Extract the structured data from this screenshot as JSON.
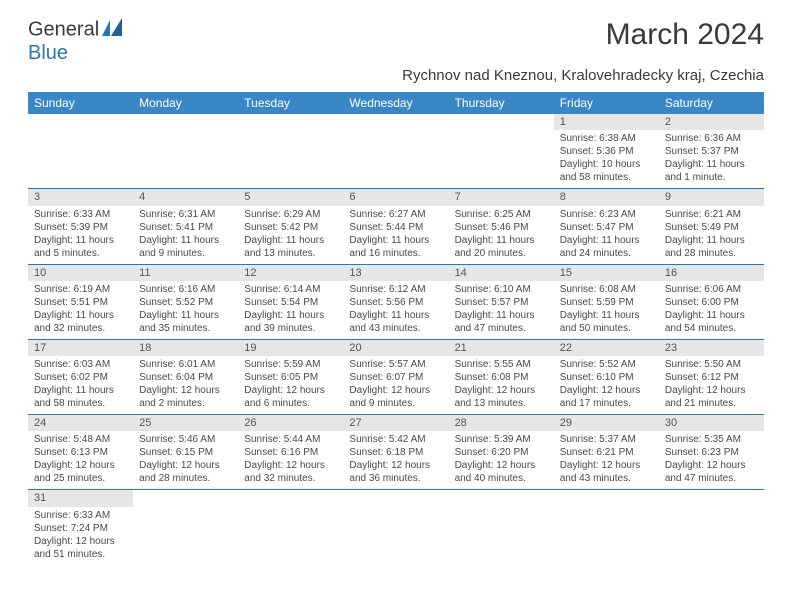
{
  "logo": {
    "text1": "General",
    "text2": "Blue"
  },
  "title": "March 2024",
  "subtitle": "Rychnov nad Kneznou, Kralovehradecky kraj, Czechia",
  "colors": {
    "header_bg": "#3a87c8",
    "header_text": "#ffffff",
    "daynum_bg": "#e6e6e6",
    "border": "#2a77b8",
    "logo_blue": "#2a77b8",
    "text": "#3a3a3a"
  },
  "day_headers": [
    "Sunday",
    "Monday",
    "Tuesday",
    "Wednesday",
    "Thursday",
    "Friday",
    "Saturday"
  ],
  "weeks": [
    [
      null,
      null,
      null,
      null,
      null,
      {
        "n": "1",
        "sunrise": "6:38 AM",
        "sunset": "5:36 PM",
        "daylight": "10 hours and 58 minutes."
      },
      {
        "n": "2",
        "sunrise": "6:36 AM",
        "sunset": "5:37 PM",
        "daylight": "11 hours and 1 minute."
      }
    ],
    [
      {
        "n": "3",
        "sunrise": "6:33 AM",
        "sunset": "5:39 PM",
        "daylight": "11 hours and 5 minutes."
      },
      {
        "n": "4",
        "sunrise": "6:31 AM",
        "sunset": "5:41 PM",
        "daylight": "11 hours and 9 minutes."
      },
      {
        "n": "5",
        "sunrise": "6:29 AM",
        "sunset": "5:42 PM",
        "daylight": "11 hours and 13 minutes."
      },
      {
        "n": "6",
        "sunrise": "6:27 AM",
        "sunset": "5:44 PM",
        "daylight": "11 hours and 16 minutes."
      },
      {
        "n": "7",
        "sunrise": "6:25 AM",
        "sunset": "5:46 PM",
        "daylight": "11 hours and 20 minutes."
      },
      {
        "n": "8",
        "sunrise": "6:23 AM",
        "sunset": "5:47 PM",
        "daylight": "11 hours and 24 minutes."
      },
      {
        "n": "9",
        "sunrise": "6:21 AM",
        "sunset": "5:49 PM",
        "daylight": "11 hours and 28 minutes."
      }
    ],
    [
      {
        "n": "10",
        "sunrise": "6:19 AM",
        "sunset": "5:51 PM",
        "daylight": "11 hours and 32 minutes."
      },
      {
        "n": "11",
        "sunrise": "6:16 AM",
        "sunset": "5:52 PM",
        "daylight": "11 hours and 35 minutes."
      },
      {
        "n": "12",
        "sunrise": "6:14 AM",
        "sunset": "5:54 PM",
        "daylight": "11 hours and 39 minutes."
      },
      {
        "n": "13",
        "sunrise": "6:12 AM",
        "sunset": "5:56 PM",
        "daylight": "11 hours and 43 minutes."
      },
      {
        "n": "14",
        "sunrise": "6:10 AM",
        "sunset": "5:57 PM",
        "daylight": "11 hours and 47 minutes."
      },
      {
        "n": "15",
        "sunrise": "6:08 AM",
        "sunset": "5:59 PM",
        "daylight": "11 hours and 50 minutes."
      },
      {
        "n": "16",
        "sunrise": "6:06 AM",
        "sunset": "6:00 PM",
        "daylight": "11 hours and 54 minutes."
      }
    ],
    [
      {
        "n": "17",
        "sunrise": "6:03 AM",
        "sunset": "6:02 PM",
        "daylight": "11 hours and 58 minutes."
      },
      {
        "n": "18",
        "sunrise": "6:01 AM",
        "sunset": "6:04 PM",
        "daylight": "12 hours and 2 minutes."
      },
      {
        "n": "19",
        "sunrise": "5:59 AM",
        "sunset": "6:05 PM",
        "daylight": "12 hours and 6 minutes."
      },
      {
        "n": "20",
        "sunrise": "5:57 AM",
        "sunset": "6:07 PM",
        "daylight": "12 hours and 9 minutes."
      },
      {
        "n": "21",
        "sunrise": "5:55 AM",
        "sunset": "6:08 PM",
        "daylight": "12 hours and 13 minutes."
      },
      {
        "n": "22",
        "sunrise": "5:52 AM",
        "sunset": "6:10 PM",
        "daylight": "12 hours and 17 minutes."
      },
      {
        "n": "23",
        "sunrise": "5:50 AM",
        "sunset": "6:12 PM",
        "daylight": "12 hours and 21 minutes."
      }
    ],
    [
      {
        "n": "24",
        "sunrise": "5:48 AM",
        "sunset": "6:13 PM",
        "daylight": "12 hours and 25 minutes."
      },
      {
        "n": "25",
        "sunrise": "5:46 AM",
        "sunset": "6:15 PM",
        "daylight": "12 hours and 28 minutes."
      },
      {
        "n": "26",
        "sunrise": "5:44 AM",
        "sunset": "6:16 PM",
        "daylight": "12 hours and 32 minutes."
      },
      {
        "n": "27",
        "sunrise": "5:42 AM",
        "sunset": "6:18 PM",
        "daylight": "12 hours and 36 minutes."
      },
      {
        "n": "28",
        "sunrise": "5:39 AM",
        "sunset": "6:20 PM",
        "daylight": "12 hours and 40 minutes."
      },
      {
        "n": "29",
        "sunrise": "5:37 AM",
        "sunset": "6:21 PM",
        "daylight": "12 hours and 43 minutes."
      },
      {
        "n": "30",
        "sunrise": "5:35 AM",
        "sunset": "6:23 PM",
        "daylight": "12 hours and 47 minutes."
      }
    ],
    [
      {
        "n": "31",
        "sunrise": "6:33 AM",
        "sunset": "7:24 PM",
        "daylight": "12 hours and 51 minutes."
      },
      null,
      null,
      null,
      null,
      null,
      null
    ]
  ],
  "labels": {
    "sunrise": "Sunrise: ",
    "sunset": "Sunset: ",
    "daylight": "Daylight: "
  }
}
